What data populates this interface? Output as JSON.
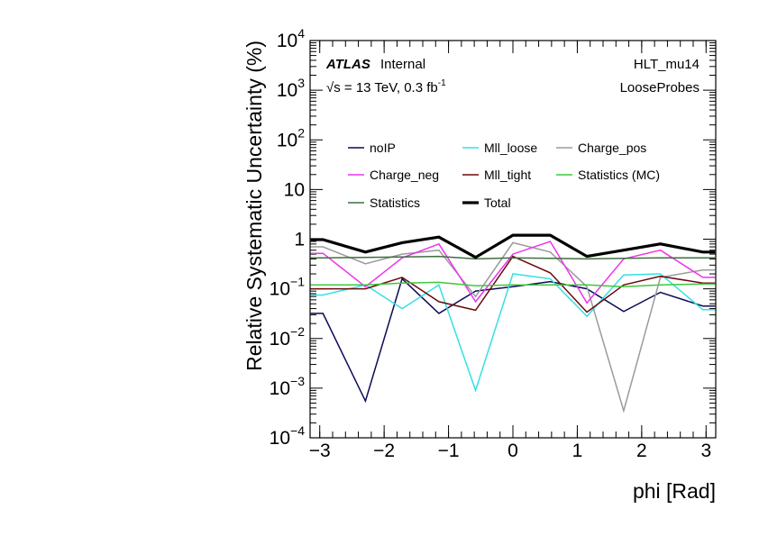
{
  "chart_data": {
    "type": "line",
    "title": "",
    "xlabel": "phi [Rad]",
    "ylabel": "Relative Systematic Uncertainty (%)",
    "xlim": [
      -3.15,
      3.15
    ],
    "ylim": [
      0.0001,
      10000
    ],
    "yscale": "log",
    "x_ticks": [
      "−3",
      "−2",
      "−1",
      "0",
      "1",
      "2",
      "3"
    ],
    "y_ticks": [
      {
        "base": "10",
        "exp": "−4"
      },
      {
        "base": "10",
        "exp": "−3"
      },
      {
        "base": "10",
        "exp": "−2"
      },
      {
        "base": "10",
        "exp": "−1"
      },
      {
        "base": "1",
        "exp": ""
      },
      {
        "base": "10",
        "exp": ""
      },
      {
        "base": "10",
        "exp": "2"
      },
      {
        "base": "10",
        "exp": "3"
      },
      {
        "base": "10",
        "exp": "4"
      }
    ],
    "annotations": {
      "atlas": "ATLAS",
      "internal": "Internal",
      "energy_prefix": "√s",
      "energy_main": " = 13 TeV, 0.3 fb",
      "energy_exp": "-1",
      "trigger": "HLT_mu14",
      "probes": "LooseProbes"
    },
    "legend_placement": "top-center",
    "bin_centers": [
      -3.14,
      -2.95,
      -2.29,
      -1.72,
      -1.15,
      -0.58,
      0.0,
      0.58,
      1.15,
      1.72,
      2.29,
      2.95,
      3.14
    ],
    "series": [
      {
        "name": "noIP",
        "color": "#0b0b57",
        "width": 1.5,
        "values": [
          0.032,
          0.032,
          0.00055,
          0.16,
          0.032,
          0.09,
          0.11,
          0.14,
          0.1,
          0.035,
          0.085,
          0.045,
          0.045
        ]
      },
      {
        "name": "Mll_loose",
        "color": "#33e0e6",
        "width": 1.5,
        "values": [
          0.075,
          0.075,
          0.12,
          0.04,
          0.12,
          0.0009,
          0.2,
          0.16,
          0.028,
          0.19,
          0.2,
          0.038,
          0.038
        ]
      },
      {
        "name": "Charge_pos",
        "color": "#9b9b9b",
        "width": 1.5,
        "values": [
          0.7,
          0.7,
          0.32,
          0.5,
          0.6,
          0.07,
          0.85,
          0.55,
          0.11,
          0.00035,
          0.17,
          0.24,
          0.24
        ]
      },
      {
        "name": "Charge_neg",
        "color": "#ee33ee",
        "width": 1.5,
        "values": [
          0.52,
          0.52,
          0.11,
          0.42,
          0.8,
          0.055,
          0.5,
          0.9,
          0.052,
          0.4,
          0.6,
          0.17,
          0.17
        ]
      },
      {
        "name": "Mll_tight",
        "color": "#6b0a0a",
        "width": 1.5,
        "values": [
          0.1,
          0.1,
          0.1,
          0.17,
          0.055,
          0.037,
          0.45,
          0.21,
          0.034,
          0.12,
          0.18,
          0.13,
          0.13
        ]
      },
      {
        "name": "Statistics (MC)",
        "color": "#3ec83e",
        "width": 1.5,
        "values": [
          0.12,
          0.12,
          0.12,
          0.13,
          0.135,
          0.115,
          0.12,
          0.12,
          0.12,
          0.11,
          0.12,
          0.125,
          0.125
        ]
      },
      {
        "name": "Statistics",
        "color": "#3f6e3f",
        "width": 1.5,
        "values": [
          0.42,
          0.42,
          0.43,
          0.44,
          0.45,
          0.4,
          0.42,
          0.41,
          0.4,
          0.41,
          0.42,
          0.42,
          0.42
        ]
      },
      {
        "name": "Total",
        "color": "#000000",
        "width": 3.2,
        "values": [
          0.98,
          0.98,
          0.55,
          0.85,
          1.1,
          0.43,
          1.2,
          1.2,
          0.45,
          0.6,
          0.8,
          0.55,
          0.55
        ]
      }
    ]
  }
}
